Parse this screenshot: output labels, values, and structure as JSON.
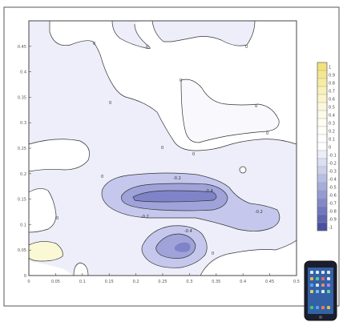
{
  "chart_data": {
    "type": "contour",
    "title": "",
    "xlabel": "",
    "ylabel": "",
    "xlim": [
      0,
      0.5
    ],
    "ylim": [
      0,
      0.5
    ],
    "x_ticks": [
      "0",
      "0.05",
      "0.1",
      "0.15",
      "0.2",
      "0.25",
      "0.3",
      "0.35",
      "0.4",
      "0.45",
      "0.5"
    ],
    "y_ticks": [
      "0",
      "0.05",
      "0.1",
      "0.15",
      "0.2",
      "0.25",
      "0.3",
      "0.35",
      "0.4",
      "0.45"
    ],
    "grid": false,
    "colorbar": {
      "placement": "right",
      "labels": [
        "1",
        "0.9",
        "0.8",
        "0.7",
        "0.6",
        "0.5",
        "0.4",
        "0.3",
        "0.2",
        "0.1",
        "0",
        "-0.1",
        "-0.2",
        "-0.3",
        "-0.4",
        "-0.5",
        "-0.6",
        "-0.7",
        "-0.8",
        "-0.9",
        "-1"
      ],
      "colors": [
        "#f3e27a",
        "#f5e78f",
        "#f7eca4",
        "#f9f1b9",
        "#fbf5cd",
        "#fcf8dc",
        "#fdfbe8",
        "#fefdf2",
        "#fffef8",
        "#ffffff",
        "#ffffff",
        "#eceef8",
        "#dcdff2",
        "#cbd0ec",
        "#b9bfe4",
        "#a7addb",
        "#959bd2",
        "#8389c8",
        "#7177bd",
        "#5f64b1",
        "#4b4f9f"
      ]
    },
    "contour_levels": [
      -0.4,
      -0.3,
      -0.2,
      -0.1,
      0
    ],
    "contour_label": "0"
  },
  "colors": {
    "background": "#ffffff",
    "plot_white": "#ffffff",
    "light_fill": "#edeef9",
    "mid_fill": "#c5c8ec",
    "deep_fill": "#9fa3d9",
    "deepest_fill": "#7f84c8",
    "yellow_fill": "#fbf8d5",
    "contour_line": "#333333",
    "frame": "#444444"
  },
  "icons": {
    "phone": "smartphone-icon"
  }
}
